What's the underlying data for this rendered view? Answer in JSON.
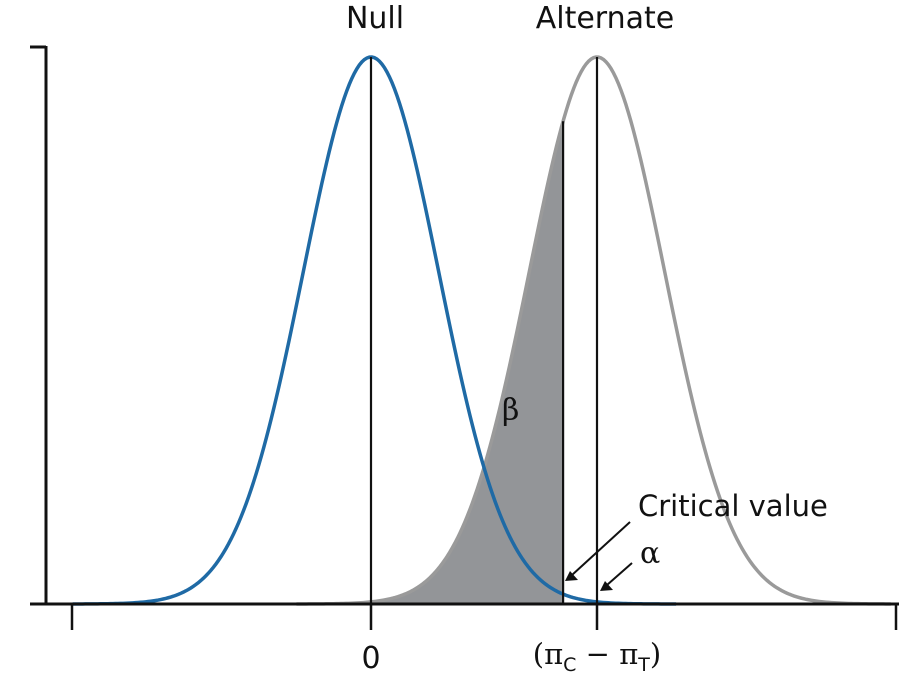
{
  "chart_data": {
    "type": "line",
    "title": "",
    "xlabel": "",
    "ylabel": "",
    "grid": false,
    "x_ticks": [
      {
        "x": 0,
        "label": "0"
      },
      {
        "x": 1,
        "label": "(πC − πT)",
        "base": "(π",
        "sub1": "C",
        "mid": " − π",
        "sub2": "T",
        "end": ")"
      }
    ],
    "series": [
      {
        "name": "Null",
        "distribution": "normal",
        "mean": 0,
        "sd": 0.3,
        "color": "#1f6aa5"
      },
      {
        "name": "Alternate",
        "distribution": "normal",
        "mean": 1,
        "sd": 0.3,
        "color": "#9a9a9a"
      }
    ],
    "critical_value": 0.85,
    "shaded_region": {
      "name": "β",
      "from": -0.33,
      "to": 0.85,
      "of_series": "Alternate",
      "color": "#939598"
    },
    "annotations": {
      "beta": "β",
      "alpha": "α",
      "critical": "Critical value"
    },
    "axis_label_color": "#111111"
  }
}
